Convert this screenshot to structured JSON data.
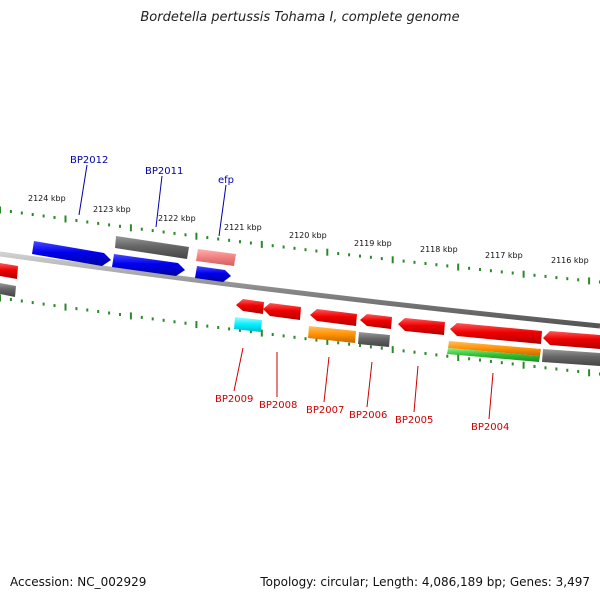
{
  "title": "Bordetella pertussis Tohama I, complete genome",
  "footer": {
    "accession": "Accession: NC_002929",
    "stats": "Topology: circular; Length: 4,086,189 bp; Genes: 3,497"
  },
  "colors": {
    "forward_label": "#0000aa",
    "reverse_label": "#cc0000",
    "tick": "#2a8a2a",
    "backbone": "#888888"
  },
  "kbp_labels": [
    {
      "text": "2124 kbp"
    },
    {
      "text": "2123 kbp"
    },
    {
      "text": "2122 kbp"
    },
    {
      "text": "2121 kbp"
    },
    {
      "text": "2120 kbp"
    },
    {
      "text": "2119 kbp"
    },
    {
      "text": "2118 kbp"
    },
    {
      "text": "2117 kbp"
    },
    {
      "text": "2116 kbp"
    }
  ],
  "gene_labels": {
    "forward": [
      {
        "name": "BP2012"
      },
      {
        "name": "BP2011"
      },
      {
        "name": "efp"
      }
    ],
    "reverse": [
      {
        "name": "BP2009"
      },
      {
        "name": "BP2008"
      },
      {
        "name": "BP2007"
      },
      {
        "name": "BP2006"
      },
      {
        "name": "BP2005"
      },
      {
        "name": "BP2004"
      }
    ]
  }
}
